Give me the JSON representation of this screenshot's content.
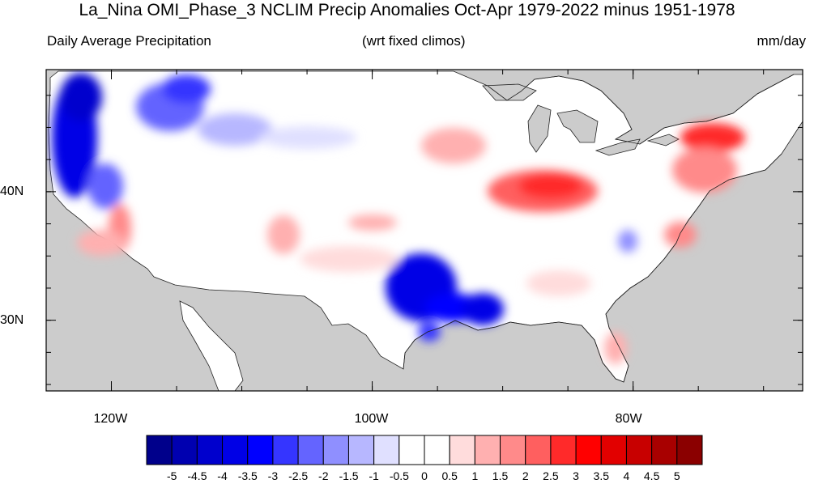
{
  "title": "La_Nina OMI_Phase_3 NCLIM Precip Anomalies Oct-Apr 1979-2022 minus 1951-1978",
  "subtitle_left": "Daily Average Precipitation",
  "subtitle_center": "(wrt fixed climos)",
  "subtitle_right": "mm/day",
  "map": {
    "lon_range": [
      -125,
      -67
    ],
    "lat_range": [
      24.5,
      49.5
    ],
    "ocean_mask_color": "#cccccc",
    "land_color": "#ffffff",
    "x_ticks": [
      {
        "lon": -120,
        "label": "120W"
      },
      {
        "lon": -100,
        "label": "100W"
      },
      {
        "lon": -80,
        "label": "80W"
      }
    ],
    "y_ticks": [
      {
        "lat": 40,
        "label": "40N"
      },
      {
        "lat": 30,
        "label": "30N"
      }
    ],
    "anomaly_regions": [
      {
        "region": "Pacific Northwest coast",
        "anomaly": -4.5
      },
      {
        "region": "Northern Rockies",
        "anomaly": -2.5
      },
      {
        "region": "Texas / Louisiana",
        "anomaly": -4.5
      },
      {
        "region": "Ohio Valley",
        "anomaly": 2.5
      },
      {
        "region": "Northern New York / New England",
        "anomaly": 3.5
      },
      {
        "region": "Southern California",
        "anomaly": 2.0
      },
      {
        "region": "Florida",
        "anomaly": 1.0
      }
    ]
  },
  "colorbar": {
    "colors": [
      "#00008b",
      "#0000b0",
      "#0000cd",
      "#0000e6",
      "#0000ff",
      "#3535ff",
      "#6464ff",
      "#8f8fff",
      "#b7b7ff",
      "#e0e0ff",
      "#ffffff",
      "#ffffff",
      "#ffdcdc",
      "#ffb0b0",
      "#ff8a8a",
      "#ff5f5f",
      "#ff2a2a",
      "#ff0000",
      "#e20000",
      "#c80000",
      "#a80000",
      "#8b0000"
    ],
    "labels": [
      "-5",
      "-4.5",
      "-4",
      "-3.5",
      "-3",
      "-2.5",
      "-2",
      "-1.5",
      "-1",
      "-0.5",
      "0",
      "0.5",
      "1",
      "1.5",
      "2",
      "2.5",
      "3",
      "3.5",
      "4",
      "4.5",
      "5"
    ]
  }
}
